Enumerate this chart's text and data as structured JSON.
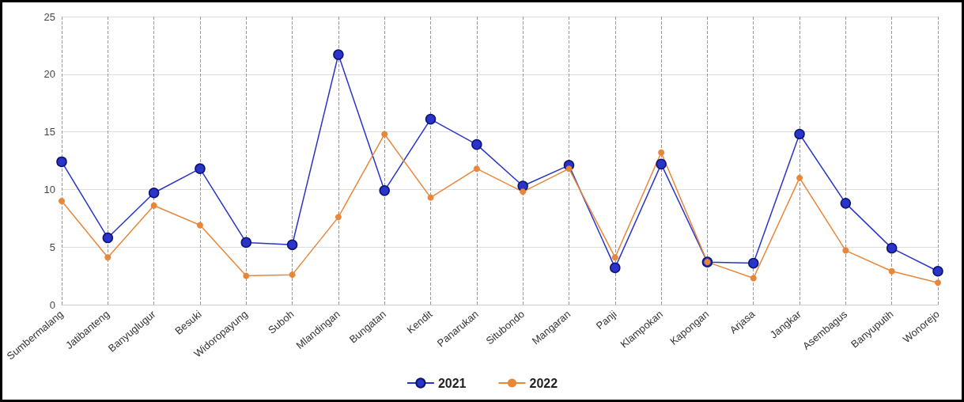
{
  "chart_data": {
    "type": "line",
    "categories": [
      "Sumbermalang",
      "Jatibanteng",
      "Banyuglugur",
      "Besuki",
      "Widoropayung",
      "Suboh",
      "Mlandingan",
      "Bungatan",
      "Kendit",
      "Panarukan",
      "Situbondo",
      "Mangaran",
      "Panji",
      "Klampokan",
      "Kapongan",
      "Arjasa",
      "Jangkar",
      "Asembagus",
      "Banyuputih",
      "Wonorejo"
    ],
    "series": [
      {
        "name": "2021",
        "color": "#2a34c8",
        "values": [
          12.4,
          5.8,
          9.7,
          11.8,
          5.4,
          5.2,
          21.7,
          9.9,
          16.1,
          13.9,
          10.3,
          12.1,
          3.2,
          12.2,
          3.7,
          3.6,
          14.8,
          8.8,
          4.9,
          2.9
        ]
      },
      {
        "name": "2022",
        "color": "#e8863a",
        "values": [
          9.0,
          4.1,
          8.6,
          6.9,
          2.5,
          2.6,
          7.6,
          14.8,
          9.3,
          11.8,
          9.8,
          11.8,
          4.1,
          13.2,
          3.7,
          2.3,
          11.0,
          4.7,
          2.9,
          1.9
        ]
      }
    ],
    "ylim": [
      0,
      25
    ],
    "yticks": [
      0,
      5,
      10,
      15,
      20,
      25
    ],
    "grid": true,
    "legend": "bottom",
    "marker": "circle",
    "line_style": "solid"
  }
}
